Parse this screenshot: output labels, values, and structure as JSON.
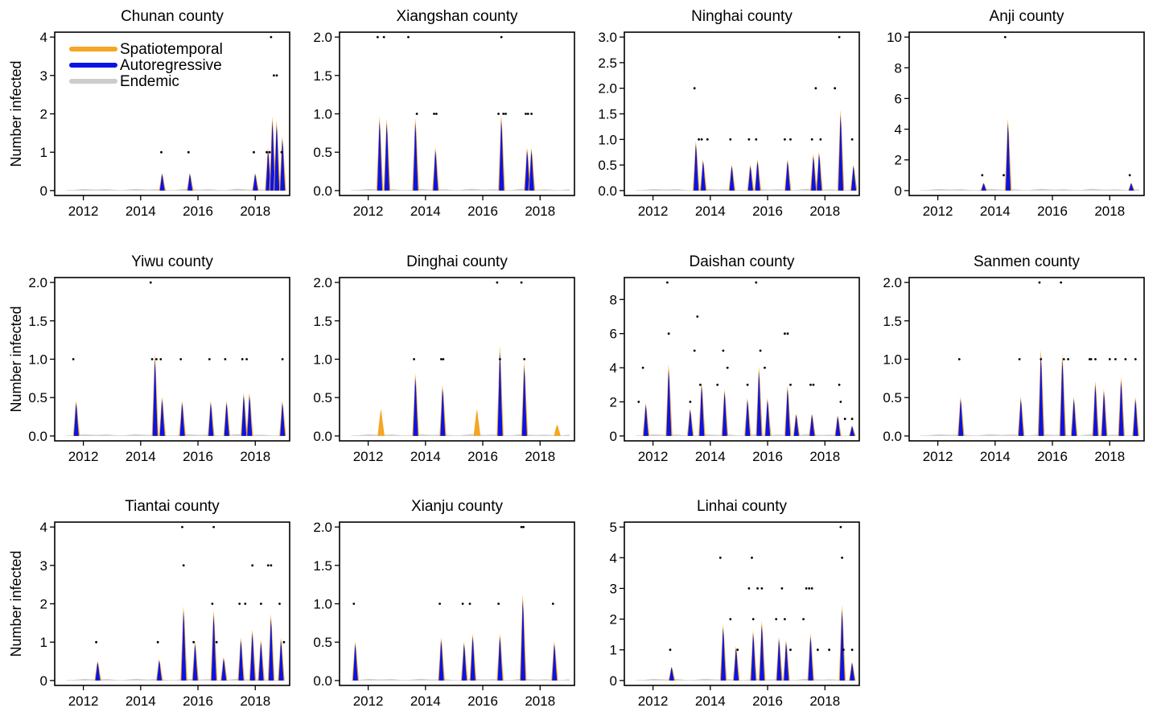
{
  "ylabel": "Number infected",
  "legend": [
    {
      "name": "Spatiotemporal",
      "color": "#f5a623"
    },
    {
      "name": "Autoregressive",
      "color": "#0a14e6"
    },
    {
      "name": "Endemic",
      "color": "#cccccc"
    }
  ],
  "chart_data": [
    {
      "type": "area",
      "title": "Chunan county",
      "xlim": [
        2011,
        2019.2
      ],
      "ylim": [
        0,
        4
      ],
      "yticks": [
        0,
        1,
        2,
        3,
        4
      ],
      "xticks": [
        2012,
        2014,
        2016,
        2018
      ],
      "observed": [
        [
          2014.72,
          1
        ],
        [
          2015.67,
          1
        ],
        [
          2017.95,
          1
        ],
        [
          2018.4,
          1
        ],
        [
          2018.5,
          1
        ],
        [
          2018.55,
          4
        ],
        [
          2018.65,
          3
        ],
        [
          2018.75,
          3
        ],
        [
          2018.92,
          1
        ]
      ],
      "peaks": [
        [
          2014.75,
          0.45
        ],
        [
          2015.72,
          0.45
        ],
        [
          2018.0,
          0.45
        ],
        [
          2018.45,
          1.1
        ],
        [
          2018.6,
          1.9
        ],
        [
          2018.75,
          1.8
        ],
        [
          2018.95,
          1.4
        ]
      ]
    },
    {
      "type": "area",
      "title": "Xiangshan county",
      "xlim": [
        2011,
        2019.2
      ],
      "ylim": [
        0,
        2
      ],
      "yticks": [
        0,
        0.5,
        1,
        1.5,
        2
      ],
      "xticks": [
        2012,
        2014,
        2016,
        2018
      ],
      "observed": [
        [
          2012.33,
          2
        ],
        [
          2012.55,
          2
        ],
        [
          2013.4,
          2
        ],
        [
          2013.7,
          1
        ],
        [
          2014.3,
          1
        ],
        [
          2014.38,
          1
        ],
        [
          2016.55,
          1
        ],
        [
          2016.65,
          2
        ],
        [
          2016.72,
          1
        ],
        [
          2016.8,
          1
        ],
        [
          2017.5,
          1
        ],
        [
          2017.58,
          1
        ],
        [
          2017.7,
          1
        ]
      ],
      "peaks": [
        [
          2012.4,
          0.95
        ],
        [
          2012.65,
          0.92
        ],
        [
          2013.65,
          0.93
        ],
        [
          2014.35,
          0.55
        ],
        [
          2016.65,
          0.97
        ],
        [
          2017.55,
          0.55
        ],
        [
          2017.7,
          0.55
        ]
      ]
    },
    {
      "type": "area",
      "title": "Ninghai county",
      "xlim": [
        2011,
        2019.2
      ],
      "ylim": [
        0,
        3
      ],
      "yticks": [
        0,
        0.5,
        1,
        1.5,
        2,
        2.5,
        3
      ],
      "xticks": [
        2012,
        2014,
        2016,
        2018
      ],
      "observed": [
        [
          2013.45,
          2
        ],
        [
          2013.6,
          1
        ],
        [
          2013.7,
          1
        ],
        [
          2013.9,
          1
        ],
        [
          2014.7,
          1
        ],
        [
          2015.35,
          1
        ],
        [
          2015.6,
          1
        ],
        [
          2016.6,
          1
        ],
        [
          2016.8,
          1
        ],
        [
          2017.55,
          1
        ],
        [
          2017.68,
          2
        ],
        [
          2017.85,
          1
        ],
        [
          2018.35,
          2
        ],
        [
          2018.5,
          3
        ],
        [
          2018.95,
          1
        ]
      ],
      "peaks": [
        [
          2013.5,
          0.95
        ],
        [
          2013.75,
          0.6
        ],
        [
          2014.75,
          0.5
        ],
        [
          2015.4,
          0.5
        ],
        [
          2015.65,
          0.6
        ],
        [
          2016.7,
          0.6
        ],
        [
          2017.6,
          0.7
        ],
        [
          2017.8,
          0.75
        ],
        [
          2018.55,
          1.55
        ],
        [
          2019.0,
          0.5
        ]
      ]
    },
    {
      "type": "area",
      "title": "Anji county",
      "xlim": [
        2011,
        2019.2
      ],
      "ylim": [
        0,
        10
      ],
      "yticks": [
        0,
        2,
        4,
        6,
        8,
        10
      ],
      "xticks": [
        2012,
        2014,
        2016,
        2018
      ],
      "observed": [
        [
          2013.55,
          1
        ],
        [
          2014.3,
          1
        ],
        [
          2014.35,
          10
        ],
        [
          2018.7,
          1
        ]
      ],
      "peaks": [
        [
          2013.6,
          0.5
        ],
        [
          2014.45,
          4.6
        ],
        [
          2018.75,
          0.5
        ]
      ]
    },
    {
      "type": "area",
      "title": "Yiwu  county",
      "xlim": [
        2011,
        2019.2
      ],
      "ylim": [
        0,
        2
      ],
      "yticks": [
        0,
        0.5,
        1,
        1.5,
        2
      ],
      "xticks": [
        2012,
        2014,
        2016,
        2018
      ],
      "observed": [
        [
          2011.65,
          1
        ],
        [
          2014.35,
          2
        ],
        [
          2014.4,
          1
        ],
        [
          2014.55,
          1
        ],
        [
          2014.7,
          1
        ],
        [
          2015.4,
          1
        ],
        [
          2016.4,
          1
        ],
        [
          2016.95,
          1
        ],
        [
          2017.55,
          1
        ],
        [
          2017.7,
          1
        ],
        [
          2018.95,
          1
        ]
      ],
      "peaks": [
        [
          2011.75,
          0.45
        ],
        [
          2014.5,
          1.05
        ],
        [
          2014.75,
          0.5
        ],
        [
          2015.45,
          0.45
        ],
        [
          2016.45,
          0.45
        ],
        [
          2017.0,
          0.45
        ],
        [
          2017.6,
          0.55
        ],
        [
          2017.8,
          0.55
        ],
        [
          2018.95,
          0.45
        ]
      ]
    },
    {
      "type": "area",
      "title": "Dinghai county",
      "xlim": [
        2011,
        2019.2
      ],
      "ylim": [
        0,
        2
      ],
      "yticks": [
        0,
        0.5,
        1,
        1.5,
        2
      ],
      "xticks": [
        2012,
        2014,
        2016,
        2018
      ],
      "observed": [
        [
          2013.6,
          1
        ],
        [
          2014.55,
          1
        ],
        [
          2014.62,
          1
        ],
        [
          2016.5,
          2
        ],
        [
          2016.6,
          1
        ],
        [
          2017.35,
          2
        ],
        [
          2017.45,
          1
        ]
      ],
      "peaks": [
        [
          2013.65,
          0.8
        ],
        [
          2014.6,
          0.65
        ],
        [
          2016.6,
          1.15
        ],
        [
          2017.45,
          0.95
        ]
      ],
      "orange_extra": [
        [
          2012.45,
          0.35
        ],
        [
          2015.8,
          0.35
        ],
        [
          2018.6,
          0.15
        ]
      ]
    },
    {
      "type": "area",
      "title": "Daishan county",
      "xlim": [
        2011,
        2019.2
      ],
      "ylim": [
        0,
        9
      ],
      "yticks": [
        0,
        2,
        4,
        6,
        8
      ],
      "xticks": [
        2012,
        2014,
        2016,
        2018
      ],
      "observed": [
        [
          2011.5,
          2
        ],
        [
          2011.65,
          4
        ],
        [
          2012.5,
          9
        ],
        [
          2012.55,
          6
        ],
        [
          2013.3,
          2
        ],
        [
          2013.45,
          5
        ],
        [
          2013.55,
          7
        ],
        [
          2013.65,
          3
        ],
        [
          2014.25,
          3
        ],
        [
          2014.45,
          5
        ],
        [
          2014.6,
          4
        ],
        [
          2015.3,
          3
        ],
        [
          2015.6,
          9
        ],
        [
          2015.75,
          5
        ],
        [
          2015.9,
          4
        ],
        [
          2016.6,
          6
        ],
        [
          2016.7,
          6
        ],
        [
          2016.8,
          3
        ],
        [
          2017.5,
          3
        ],
        [
          2017.6,
          3
        ],
        [
          2018.5,
          3
        ],
        [
          2018.55,
          2
        ],
        [
          2018.7,
          1
        ],
        [
          2018.95,
          1
        ]
      ],
      "peaks": [
        [
          2011.75,
          1.9
        ],
        [
          2012.55,
          4.1
        ],
        [
          2013.3,
          1.6
        ],
        [
          2013.7,
          3.1
        ],
        [
          2014.5,
          2.7
        ],
        [
          2015.3,
          2.2
        ],
        [
          2015.7,
          4.0
        ],
        [
          2016.0,
          2.2
        ],
        [
          2016.7,
          2.9
        ],
        [
          2017.0,
          1.3
        ],
        [
          2017.55,
          1.3
        ],
        [
          2018.45,
          1.2
        ],
        [
          2018.95,
          0.6
        ]
      ]
    },
    {
      "type": "area",
      "title": "Sanmen county",
      "xlim": [
        2011,
        2019.2
      ],
      "ylim": [
        0,
        2
      ],
      "yticks": [
        0,
        0.5,
        1,
        1.5,
        2
      ],
      "xticks": [
        2012,
        2014,
        2016,
        2018
      ],
      "observed": [
        [
          2012.75,
          1
        ],
        [
          2014.85,
          1
        ],
        [
          2015.55,
          2
        ],
        [
          2015.6,
          1
        ],
        [
          2016.3,
          2
        ],
        [
          2016.4,
          1
        ],
        [
          2016.55,
          1
        ],
        [
          2017.3,
          1
        ],
        [
          2017.35,
          1
        ],
        [
          2017.5,
          1
        ],
        [
          2018.0,
          1
        ],
        [
          2018.2,
          1
        ],
        [
          2018.55,
          1
        ],
        [
          2018.9,
          1
        ]
      ],
      "peaks": [
        [
          2012.8,
          0.5
        ],
        [
          2014.9,
          0.5
        ],
        [
          2015.6,
          1.1
        ],
        [
          2016.35,
          1.05
        ],
        [
          2016.75,
          0.5
        ],
        [
          2017.5,
          0.7
        ],
        [
          2017.8,
          0.6
        ],
        [
          2018.4,
          0.75
        ],
        [
          2018.9,
          0.5
        ]
      ]
    },
    {
      "type": "area",
      "title": "Tiantai county",
      "xlim": [
        2011,
        2019.2
      ],
      "ylim": [
        0,
        4
      ],
      "yticks": [
        0,
        1,
        2,
        3,
        4
      ],
      "xticks": [
        2012,
        2014,
        2016,
        2018
      ],
      "observed": [
        [
          2012.45,
          1
        ],
        [
          2014.6,
          1
        ],
        [
          2015.45,
          4
        ],
        [
          2015.5,
          3
        ],
        [
          2015.85,
          1
        ],
        [
          2016.5,
          2
        ],
        [
          2016.55,
          4
        ],
        [
          2016.65,
          1
        ],
        [
          2017.45,
          2
        ],
        [
          2017.65,
          2
        ],
        [
          2017.9,
          3
        ],
        [
          2018.2,
          2
        ],
        [
          2018.45,
          3
        ],
        [
          2018.55,
          3
        ],
        [
          2018.85,
          2
        ],
        [
          2019.0,
          1
        ]
      ],
      "peaks": [
        [
          2012.5,
          0.5
        ],
        [
          2014.65,
          0.55
        ],
        [
          2015.5,
          1.9
        ],
        [
          2015.9,
          1.0
        ],
        [
          2016.55,
          1.8
        ],
        [
          2016.9,
          0.6
        ],
        [
          2017.5,
          1.1
        ],
        [
          2017.9,
          1.3
        ],
        [
          2018.2,
          1.05
        ],
        [
          2018.55,
          1.7
        ],
        [
          2018.9,
          1.1
        ]
      ]
    },
    {
      "type": "area",
      "title": "Xianju county",
      "xlim": [
        2011,
        2019.2
      ],
      "ylim": [
        0,
        2
      ],
      "yticks": [
        0,
        0.5,
        1,
        1.5,
        2
      ],
      "xticks": [
        2012,
        2014,
        2016,
        2018
      ],
      "observed": [
        [
          2011.5,
          1
        ],
        [
          2014.5,
          1
        ],
        [
          2015.3,
          1
        ],
        [
          2015.55,
          1
        ],
        [
          2016.55,
          1
        ],
        [
          2017.35,
          2
        ],
        [
          2017.42,
          2
        ],
        [
          2018.45,
          1
        ]
      ],
      "peaks": [
        [
          2011.55,
          0.5
        ],
        [
          2014.55,
          0.55
        ],
        [
          2015.35,
          0.5
        ],
        [
          2015.65,
          0.6
        ],
        [
          2016.6,
          0.6
        ],
        [
          2017.4,
          1.1
        ],
        [
          2018.5,
          0.5
        ]
      ]
    },
    {
      "type": "area",
      "title": "Linhai county",
      "xlim": [
        2011,
        2019.2
      ],
      "ylim": [
        0,
        5
      ],
      "yticks": [
        0,
        1,
        2,
        3,
        4,
        5
      ],
      "xticks": [
        2012,
        2014,
        2016,
        2018
      ],
      "observed": [
        [
          2012.6,
          1
        ],
        [
          2014.35,
          4
        ],
        [
          2014.7,
          2
        ],
        [
          2014.95,
          1
        ],
        [
          2015.35,
          3
        ],
        [
          2015.45,
          4
        ],
        [
          2015.5,
          2
        ],
        [
          2015.65,
          3
        ],
        [
          2015.8,
          3
        ],
        [
          2016.3,
          2
        ],
        [
          2016.5,
          3
        ],
        [
          2016.6,
          2
        ],
        [
          2016.8,
          1
        ],
        [
          2017.25,
          2
        ],
        [
          2017.35,
          3
        ],
        [
          2017.45,
          3
        ],
        [
          2017.55,
          3
        ],
        [
          2017.75,
          1
        ],
        [
          2018.15,
          1
        ],
        [
          2018.55,
          5
        ],
        [
          2018.6,
          4
        ],
        [
          2018.65,
          1
        ],
        [
          2018.95,
          1
        ]
      ],
      "peaks": [
        [
          2012.65,
          0.45
        ],
        [
          2014.45,
          1.8
        ],
        [
          2014.9,
          1.1
        ],
        [
          2015.5,
          1.6
        ],
        [
          2015.8,
          1.9
        ],
        [
          2016.4,
          1.4
        ],
        [
          2016.65,
          1.3
        ],
        [
          2017.5,
          1.5
        ],
        [
          2018.6,
          2.4
        ],
        [
          2018.95,
          0.6
        ]
      ]
    }
  ]
}
